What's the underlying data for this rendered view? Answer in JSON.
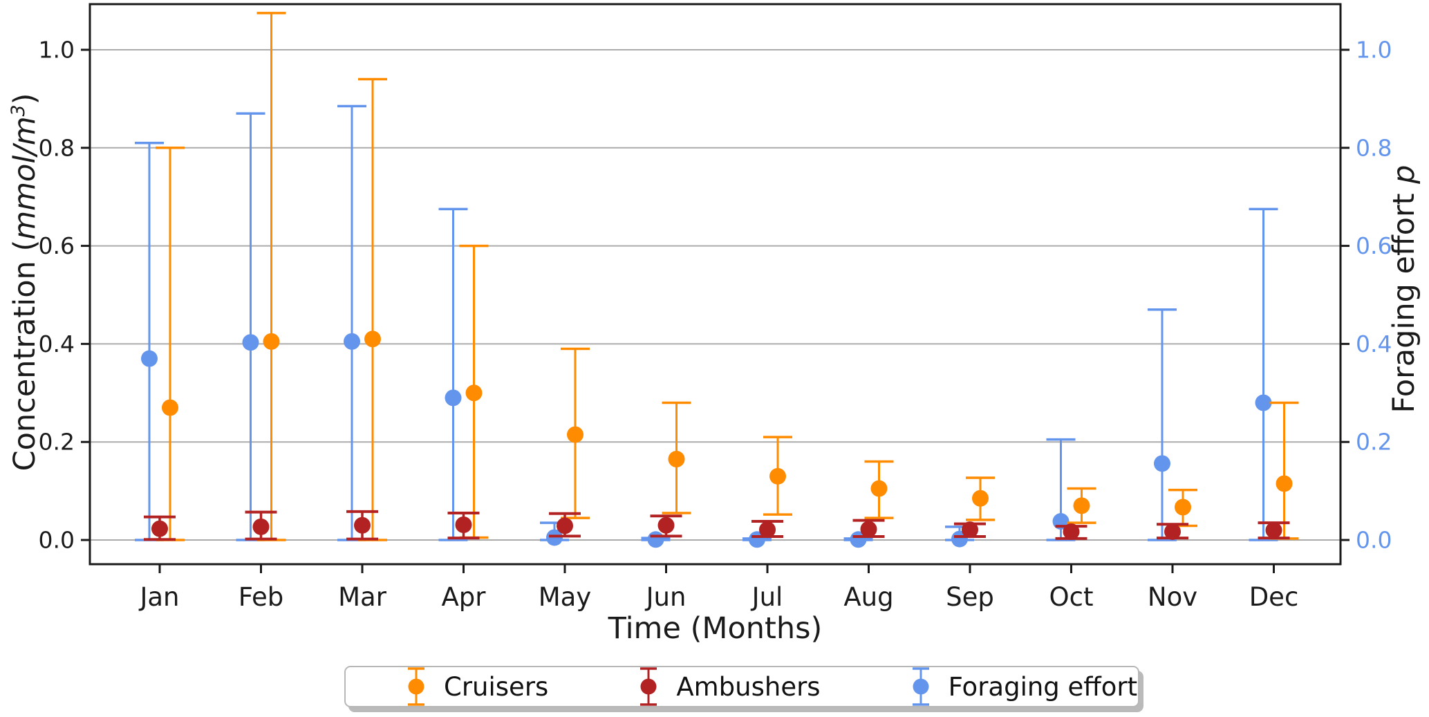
{
  "chart_data": {
    "type": "scatter",
    "subtype": "errorbar",
    "title": "",
    "xlabel": "Time (Months)",
    "ylabel_left": {
      "prefix": "Concentration (",
      "unit": "mmol/m",
      "exponent": "3",
      "suffix": ")"
    },
    "ylabel_right": {
      "text": "Foraging effort ",
      "symbol": "p"
    },
    "categories": [
      "Jan",
      "Feb",
      "Mar",
      "Apr",
      "May",
      "Jun",
      "Jul",
      "Aug",
      "Sep",
      "Oct",
      "Nov",
      "Dec"
    ],
    "left_axis": {
      "ticks": [
        "0.0",
        "0.2",
        "0.4",
        "0.6",
        "0.8",
        "1.0"
      ],
      "values": [
        0.0,
        0.2,
        0.4,
        0.6,
        0.8,
        1.0
      ],
      "color": "#1a1a1a"
    },
    "right_axis": {
      "ticks": [
        "0.0",
        "0.2",
        "0.4",
        "0.6",
        "0.8",
        "1.0"
      ],
      "values": [
        0.0,
        0.2,
        0.4,
        0.6,
        0.8,
        1.0
      ],
      "color": "#6495ED"
    },
    "ylim": [
      -0.049,
      1.093
    ],
    "grid": true,
    "grid_color": "#ababab",
    "spine_color": "#1a1a1a",
    "legend_position": "bottom-center",
    "series": [
      {
        "name": "Cruisers",
        "color": "#FF8C00",
        "axis": "left",
        "values": [
          0.27,
          0.405,
          0.41,
          0.3,
          0.215,
          0.165,
          0.13,
          0.105,
          0.085,
          0.07,
          0.067,
          0.115
        ],
        "err_low": [
          0.0,
          0.0,
          0.0,
          0.005,
          0.045,
          0.055,
          0.052,
          0.045,
          0.041,
          0.035,
          0.029,
          0.003
        ],
        "err_high": [
          0.8,
          1.075,
          0.94,
          0.6,
          0.39,
          0.28,
          0.21,
          0.16,
          0.127,
          0.105,
          0.102,
          0.28
        ]
      },
      {
        "name": "Ambushers",
        "color": "#B22222",
        "axis": "left",
        "values": [
          0.023,
          0.027,
          0.03,
          0.031,
          0.029,
          0.03,
          0.021,
          0.022,
          0.021,
          0.017,
          0.017,
          0.02
        ],
        "err_low": [
          0.001,
          0.002,
          0.002,
          0.004,
          0.008,
          0.008,
          0.007,
          0.007,
          0.007,
          0.003,
          0.004,
          0.004
        ],
        "err_high": [
          0.047,
          0.057,
          0.058,
          0.055,
          0.054,
          0.049,
          0.038,
          0.04,
          0.033,
          0.028,
          0.032,
          0.035
        ]
      },
      {
        "name": "Foraging effort",
        "color": "#6495ED",
        "axis": "right",
        "values": [
          0.37,
          0.403,
          0.405,
          0.29,
          0.005,
          0.001,
          0.001,
          0.001,
          0.002,
          0.038,
          0.156,
          0.28
        ],
        "err_low": [
          0.0,
          0.0,
          0.0,
          0.0,
          0.0,
          0.0,
          0.0,
          0.0,
          0.0,
          0.0,
          0.0,
          0.0
        ],
        "err_high": [
          0.81,
          0.87,
          0.885,
          0.675,
          0.035,
          0.004,
          0.003,
          0.003,
          0.027,
          0.205,
          0.47,
          0.675
        ]
      }
    ]
  }
}
